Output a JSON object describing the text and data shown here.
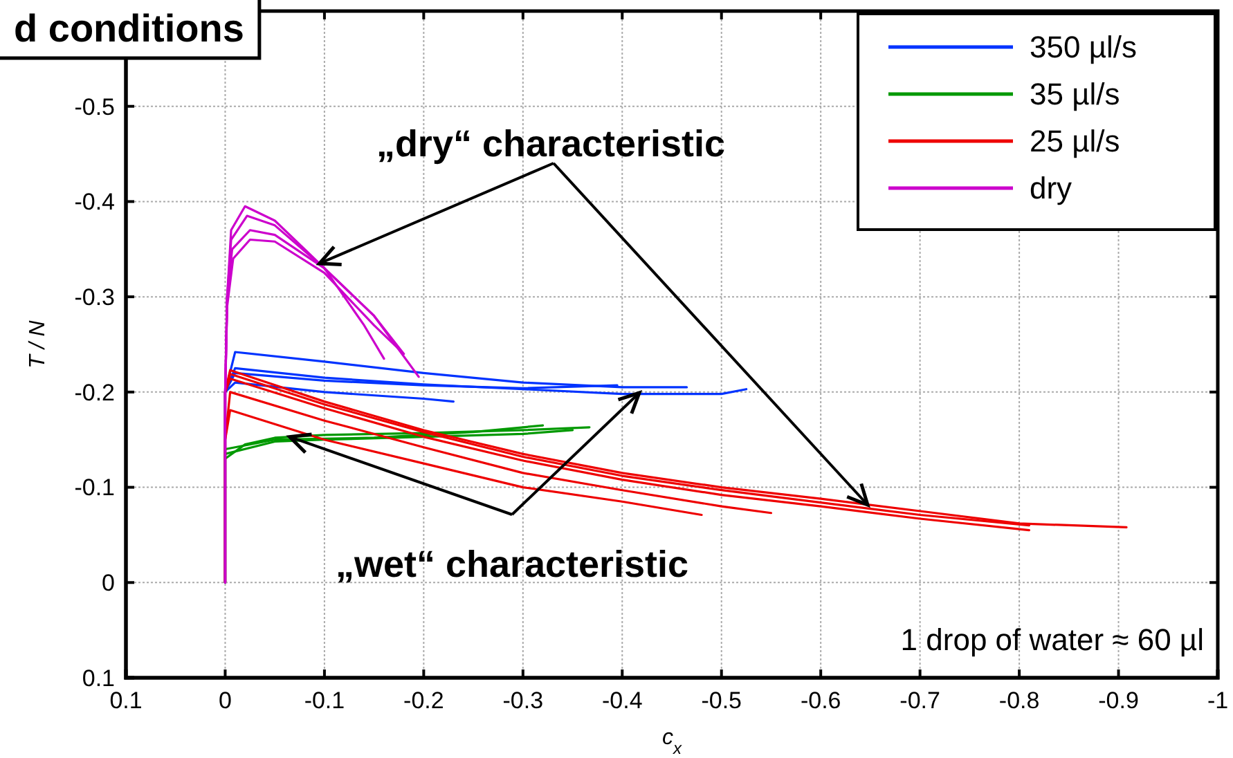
{
  "chart_data": {
    "type": "line",
    "title": "d conditions",
    "xlabel": "c$_{x}$",
    "ylabel": "T / N",
    "xlim": [
      0.1,
      -1
    ],
    "xticks": [
      0.1,
      0,
      -0.1,
      -0.2,
      -0.3,
      -0.4,
      -0.5,
      -0.6,
      -0.7,
      -0.8,
      -0.9,
      -1
    ],
    "ylim": [
      0.1,
      -0.6
    ],
    "yticks": [
      0.1,
      0,
      -0.1,
      -0.2,
      -0.3,
      -0.4,
      -0.5
    ],
    "grid": true,
    "legend": "top right",
    "annotations": [
      {
        "text": "„dry“ characteristic",
        "x": -0.095,
        "y": -0.335
      },
      {
        "text": "„wet“ characteristic",
        "x": -0.065,
        "y": -0.153
      },
      "1 drop of water ≈ 60 µl"
    ],
    "series": [
      {
        "name": "350 µl/s",
        "color": "#0033ff",
        "x": [
          0,
          0,
          -0.01,
          -0.1,
          -0.2,
          -0.3,
          -0.4,
          -0.465
        ],
        "values": [
          0,
          -0.2,
          -0.242,
          -0.232,
          -0.22,
          -0.21,
          -0.205,
          -0.205
        ]
      },
      {
        "color": "#0033ff",
        "x": [
          0,
          0,
          -0.01,
          -0.1,
          -0.2,
          -0.3,
          -0.4,
          -0.5,
          -0.525
        ],
        "values": [
          0,
          -0.2,
          -0.225,
          -0.215,
          -0.208,
          -0.203,
          -0.198,
          -0.198,
          -0.203
        ]
      },
      {
        "color": "#0033ff",
        "x": [
          0,
          0,
          -0.01,
          -0.1,
          -0.2,
          -0.3,
          -0.395
        ],
        "values": [
          0,
          -0.2,
          -0.22,
          -0.212,
          -0.207,
          -0.204,
          -0.207
        ]
      },
      {
        "color": "#0033ff",
        "x": [
          0,
          0,
          -0.01,
          -0.1,
          -0.2,
          -0.23
        ],
        "values": [
          0,
          -0.2,
          -0.21,
          -0.2,
          -0.193,
          -0.19
        ]
      },
      {
        "name": "35 µl/s",
        "color": "#009900",
        "x": [
          0,
          0,
          -0.02,
          -0.05,
          -0.1,
          -0.2,
          -0.3,
          -0.367
        ],
        "values": [
          0,
          -0.13,
          -0.145,
          -0.152,
          -0.155,
          -0.157,
          -0.16,
          -0.163
        ]
      },
      {
        "color": "#009900",
        "x": [
          0,
          0,
          -0.05,
          -0.1,
          -0.2,
          -0.3,
          -0.35
        ],
        "values": [
          0,
          -0.135,
          -0.148,
          -0.15,
          -0.153,
          -0.156,
          -0.16
        ]
      },
      {
        "color": "#009900",
        "x": [
          0,
          0,
          -0.05,
          -0.15,
          -0.25,
          -0.32
        ],
        "values": [
          0,
          -0.14,
          -0.15,
          -0.152,
          -0.158,
          -0.165
        ]
      },
      {
        "name": "25 µl/s",
        "color": "#ee0000",
        "x": [
          0,
          0,
          -0.005,
          -0.1,
          -0.2,
          -0.3,
          -0.4,
          -0.5,
          -0.6,
          -0.7,
          -0.8,
          -0.908
        ],
        "values": [
          0,
          -0.2,
          -0.223,
          -0.19,
          -0.16,
          -0.135,
          -0.115,
          -0.1,
          -0.088,
          -0.075,
          -0.062,
          -0.058
        ]
      },
      {
        "color": "#ee0000",
        "x": [
          0,
          0,
          -0.005,
          -0.1,
          -0.2,
          -0.3,
          -0.4,
          -0.5,
          -0.6,
          -0.7,
          -0.81
        ],
        "values": [
          0,
          -0.2,
          -0.219,
          -0.187,
          -0.158,
          -0.132,
          -0.112,
          -0.097,
          -0.084,
          -0.071,
          -0.06
        ]
      },
      {
        "color": "#ee0000",
        "x": [
          0,
          0,
          -0.005,
          -0.1,
          -0.2,
          -0.3,
          -0.4,
          -0.5,
          -0.6,
          -0.7,
          -0.81
        ],
        "values": [
          0,
          -0.2,
          -0.214,
          -0.183,
          -0.153,
          -0.128,
          -0.108,
          -0.092,
          -0.08,
          -0.067,
          -0.055
        ]
      },
      {
        "color": "#ee0000",
        "x": [
          0,
          0,
          -0.005,
          -0.1,
          -0.2,
          -0.3,
          -0.4,
          -0.5,
          -0.55
        ],
        "values": [
          0,
          -0.15,
          -0.2,
          -0.17,
          -0.142,
          -0.115,
          -0.097,
          -0.08,
          -0.073
        ]
      },
      {
        "color": "#ee0000",
        "x": [
          0,
          0,
          -0.005,
          -0.1,
          -0.2,
          -0.3,
          -0.4,
          -0.48
        ],
        "values": [
          0,
          -0.15,
          -0.181,
          -0.15,
          -0.125,
          -0.1,
          -0.085,
          -0.071
        ]
      },
      {
        "name": "dry",
        "color": "#cc00cc",
        "x": [
          0,
          0,
          -0.002,
          -0.006,
          -0.02,
          -0.05,
          -0.1,
          -0.14,
          -0.16
        ],
        "values": [
          0,
          -0.2,
          -0.3,
          -0.37,
          -0.395,
          -0.38,
          -0.33,
          -0.27,
          -0.235
        ]
      },
      {
        "color": "#cc00cc",
        "x": [
          0,
          0,
          -0.002,
          -0.006,
          -0.022,
          -0.05,
          -0.1,
          -0.15,
          -0.18
        ],
        "values": [
          0,
          -0.2,
          -0.3,
          -0.36,
          -0.385,
          -0.375,
          -0.33,
          -0.28,
          -0.24
        ]
      },
      {
        "color": "#cc00cc",
        "x": [
          0,
          0,
          -0.002,
          -0.007,
          -0.025,
          -0.05,
          -0.1,
          -0.15,
          -0.195
        ],
        "values": [
          0,
          -0.2,
          -0.3,
          -0.35,
          -0.37,
          -0.365,
          -0.33,
          -0.28,
          -0.216
        ]
      },
      {
        "color": "#cc00cc",
        "x": [
          0,
          0,
          -0.002,
          -0.008,
          -0.025,
          -0.05,
          -0.1,
          -0.15,
          -0.175
        ],
        "values": [
          0,
          -0.2,
          -0.29,
          -0.34,
          -0.36,
          -0.358,
          -0.325,
          -0.27,
          -0.245
        ]
      }
    ]
  }
}
